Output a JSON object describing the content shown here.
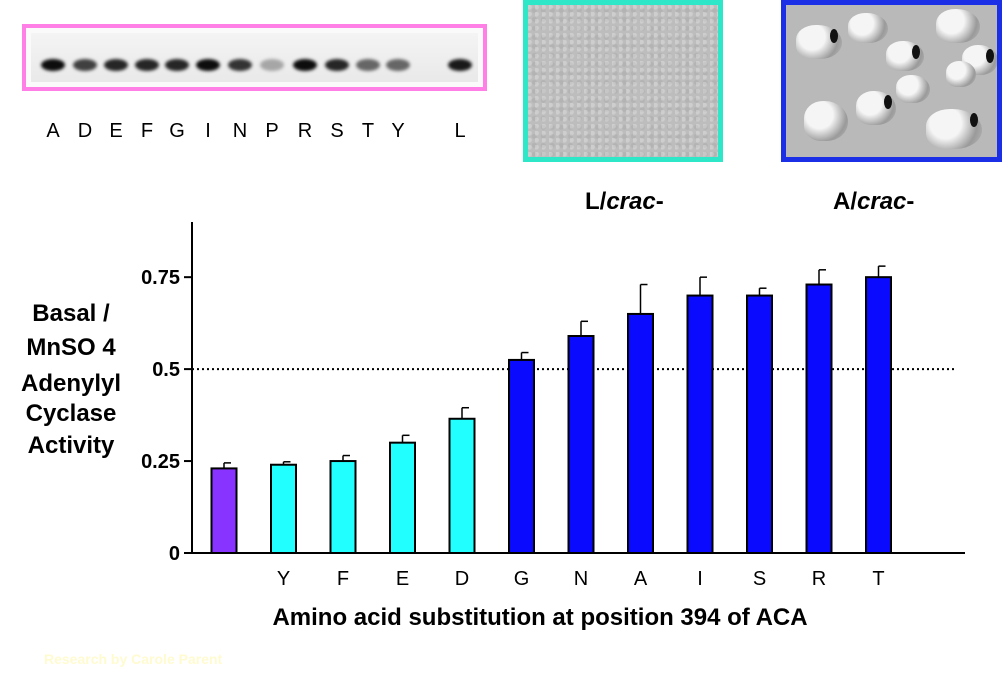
{
  "gel": {
    "lanes": [
      {
        "label": "A",
        "intensity": 0.95
      },
      {
        "label": "D",
        "intensity": 0.75
      },
      {
        "label": "E",
        "intensity": 0.85
      },
      {
        "label": "F",
        "intensity": 0.85
      },
      {
        "label": "G",
        "intensity": 0.85
      },
      {
        "label": "I",
        "intensity": 0.95
      },
      {
        "label": "N",
        "intensity": 0.8
      },
      {
        "label": "P",
        "intensity": 0.35
      },
      {
        "label": "R",
        "intensity": 0.95
      },
      {
        "label": "S",
        "intensity": 0.85
      },
      {
        "label": "T",
        "intensity": 0.6
      },
      {
        "label": "Y",
        "intensity": 0.6
      },
      {
        "label": "L",
        "intensity": 0.9
      }
    ],
    "border_color": "#ff7fe6"
  },
  "photos": {
    "left": {
      "label": "L/",
      "label_italic": "crac",
      "label_suffix": "-",
      "border_color": "#2ee6c8"
    },
    "right": {
      "label": "A/",
      "label_italic": "crac",
      "label_suffix": "-",
      "border_color": "#1a2fe6"
    }
  },
  "axes": {
    "ylabel_lines": [
      "Basal /",
      "MnSO 4",
      "Adenylyl",
      "Cyclase",
      "Activity"
    ],
    "xlabel": "Amino acid substitution at position 394 of ACA"
  },
  "credit": "Research by Carole Parent",
  "chart_data": {
    "type": "bar",
    "categories": [
      "",
      "Y",
      "F",
      "E",
      "D",
      "G",
      "N",
      "A",
      "I",
      "S",
      "R",
      "T"
    ],
    "values": [
      0.23,
      0.24,
      0.25,
      0.3,
      0.365,
      0.525,
      0.59,
      0.65,
      0.7,
      0.7,
      0.73,
      0.75
    ],
    "errors": [
      0.015,
      0.008,
      0.015,
      0.02,
      0.03,
      0.02,
      0.04,
      0.08,
      0.05,
      0.02,
      0.04,
      0.03
    ],
    "colors": [
      "#8833ff",
      "#22ffff",
      "#22ffff",
      "#22ffff",
      "#22ffff",
      "#0a0aff",
      "#0a0aff",
      "#0a0aff",
      "#0a0aff",
      "#0a0aff",
      "#0a0aff",
      "#0a0aff"
    ],
    "yticks": [
      0,
      0.25,
      0.5,
      0.75
    ],
    "ytick_labels": [
      "0",
      "0.25",
      "0.5",
      "0.75"
    ],
    "ylim": [
      0,
      0.9
    ],
    "reference_line": 0.5,
    "xlabel": "Amino acid substitution at position 394 of ACA",
    "ylabel": "Basal / MnSO4 Adenylyl Cyclase Activity",
    "grid": false,
    "legend": "none"
  }
}
